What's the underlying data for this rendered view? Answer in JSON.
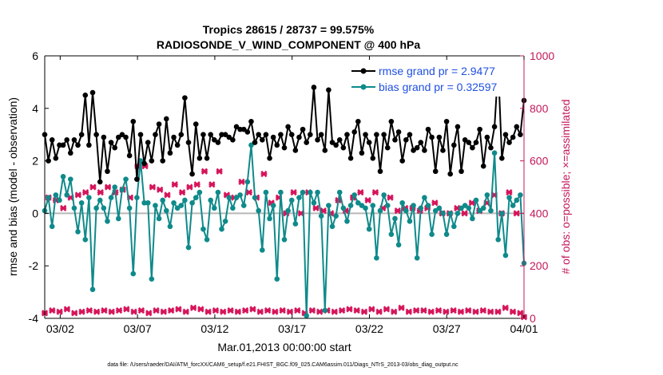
{
  "chart_data": {
    "type": "line",
    "title_line1": "Tropics 28615 / 28737 = 99.575%",
    "title_line2": "RADIOSONDE_V_WIND_COMPONENT @ 400 hPa",
    "xlabel": "Mar.01,2013 00:00:00 start",
    "ylabel_left": "rmse and bias (model - observation)",
    "ylabel_right": "# of obs: o=possible; ×=assimilated",
    "x_start_day": 1,
    "x_end_day": 31,
    "ylim_left": [
      -4,
      6
    ],
    "ylim_right": [
      0,
      1000
    ],
    "yticks_left": [
      "-4",
      "-2",
      "0",
      "2",
      "4",
      "6"
    ],
    "yticks_right": [
      "0",
      "200",
      "400",
      "600",
      "800",
      "1000"
    ],
    "xticks": [
      {
        "day": 2,
        "label": "03/02"
      },
      {
        "day": 7,
        "label": "03/07"
      },
      {
        "day": 12,
        "label": "03/12"
      },
      {
        "day": 17,
        "label": "03/17"
      },
      {
        "day": 22,
        "label": "03/22"
      },
      {
        "day": 27,
        "label": "03/27"
      },
      {
        "day": 32,
        "label": "04/01"
      }
    ],
    "zero_line": 0,
    "colors": {
      "rmse": "#000000",
      "bias": "#0f8a8a",
      "obs": "#d6155a",
      "right_axis": "#c2185b",
      "legend_text": "#1f4fe0",
      "zero_line": "#b8b8b8"
    },
    "series": [
      {
        "name": "rmse",
        "legend": "rmse grand pr = 2.9477",
        "values": [
          3.0,
          2.0,
          2.8,
          2.1,
          2.6,
          2.6,
          2.8,
          2.3,
          2.8,
          2.6,
          3.0,
          4.5,
          2.6,
          4.6,
          3.0,
          1.2,
          2.9,
          1.6,
          2.7,
          2.5,
          2.9,
          3.0,
          2.9,
          2.2,
          3.5,
          1.3,
          3.0,
          1.9,
          2.7,
          2.0,
          3.0,
          3.4,
          2.0,
          3.6,
          2.3,
          2.9,
          2.6,
          3.0,
          4.4,
          2.7,
          1.5,
          3.4,
          2.1,
          3.0,
          2.1,
          3.0,
          2.8,
          2.7,
          3.0,
          3.0,
          2.9,
          2.8,
          3.3,
          3.2,
          3.2,
          3.1,
          3.5,
          2.7,
          3.0,
          2.8,
          3.0,
          2.1,
          2.9,
          2.6,
          3.0,
          2.5,
          3.3,
          3.0,
          2.4,
          2.9,
          3.2,
          2.7,
          3.0,
          4.8,
          2.8,
          3.0,
          2.4,
          4.7,
          2.7,
          2.6,
          2.8,
          2.5,
          3.0,
          2.1,
          3.1,
          3.5,
          2.3,
          3.0,
          2.7,
          2.1,
          3.0,
          1.6,
          3.0,
          2.5,
          3.5,
          2.8,
          3.1,
          2.0,
          2.8,
          3.0,
          2.4,
          2.5,
          2.7,
          2.4,
          3.2,
          2.9,
          1.6,
          2.9,
          2.4,
          3.5,
          1.5,
          2.6,
          3.3,
          1.6,
          2.8,
          2.7,
          2.5,
          2.7,
          3.2,
          1.8,
          2.9,
          2.5,
          3.3,
          5.6,
          2.1,
          3.0,
          2.7,
          2.9,
          3.3,
          3.0,
          4.3
        ]
      },
      {
        "name": "bias",
        "legend": "bias grand pr = 0.32597",
        "values": [
          0.1,
          0.6,
          -0.5,
          0.7,
          0.5,
          1.4,
          0.7,
          1.3,
          0.2,
          -0.7,
          0.4,
          -1.0,
          0.6,
          -2.9,
          0.2,
          0.5,
          0.2,
          -0.3,
          0.6,
          1.0,
          -0.2,
          0.9,
          1.3,
          0.2,
          -2.3,
          0.6,
          2.0,
          0.4,
          0.4,
          -2.5,
          0.3,
          -0.2,
          0.5,
          0.1,
          -0.5,
          0.4,
          0.2,
          0.3,
          0.5,
          -1.3,
          0.4,
          0.6,
          0.8,
          -0.6,
          -1.0,
          0.5,
          0.2,
          0.8,
          -0.6,
          -0.3,
          0.6,
          0.2,
          0.6,
          0.7,
          0.3,
          1.2,
          2.6,
          0.6,
          0.1,
          -1.4,
          0.8,
          -0.2,
          0.3,
          -2.5,
          0.8,
          -1.0,
          0.1,
          0.5,
          -0.4,
          0.6,
          0.8,
          -3.9,
          0.8,
          0.4,
          0.8,
          -0.1,
          -3.7,
          0.3,
          -0.5,
          -0.1,
          0.8,
          0.2,
          -0.3,
          0.3,
          0.7,
          0.4,
          0.3,
          0.2,
          -0.6,
          0.3,
          -1.7,
          0.1,
          0.7,
          0.3,
          -0.8,
          -0.2,
          -1.2,
          0.4,
          0.1,
          -0.3,
          0.3,
          -1.7,
          0.2,
          0.6,
          0.3,
          -0.8,
          0.1,
          0.2,
          0.0,
          -0.8,
          0.0,
          -0.5,
          0.0,
          0.2,
          0.3,
          0.2,
          -0.2,
          0.5,
          0.1,
          0.2,
          0.7,
          0.1,
          2.3,
          -1.0,
          0.0,
          -1.6,
          0.6,
          0.3,
          0.5,
          0.7,
          -1.9
        ]
      },
      {
        "name": "obs_possible",
        "values": [
          20,
          460,
          30,
          450,
          25,
          420,
          35,
          460,
          20,
          470,
          25,
          480,
          30,
          500,
          25,
          480,
          30,
          500,
          25,
          480,
          30,
          490,
          35,
          460,
          25,
          580,
          30,
          580,
          20,
          500,
          30,
          490,
          25,
          470,
          30,
          510,
          35,
          480,
          25,
          500,
          40,
          510,
          35,
          560,
          25,
          510,
          30,
          560,
          25,
          470,
          30,
          460,
          25,
          520,
          30,
          480,
          35,
          460,
          25,
          550,
          30,
          440,
          25,
          460,
          30,
          400,
          25,
          480,
          30,
          400,
          20,
          480,
          30,
          420,
          25,
          410,
          30,
          400,
          25,
          450,
          30,
          410,
          35,
          460,
          30,
          480,
          25,
          450,
          35,
          480,
          25,
          420,
          35,
          460,
          25,
          410,
          40,
          420,
          25,
          420,
          30,
          410,
          30,
          420,
          25,
          440,
          30,
          400,
          25,
          400,
          30,
          420,
          25,
          400,
          30,
          440,
          25,
          410,
          30,
          440,
          25,
          470,
          25,
          400,
          40,
          480,
          25,
          400,
          20,
          5
        ]
      }
    ],
    "data_file": "data file: /Users/raeder/DAI/ATM_forcXX/CAM6_setup/f.e21.FHIST_BGC.f09_025.CAM6assim.011/Diags_NTrS_2013-03/obs_diag_output.nc"
  }
}
